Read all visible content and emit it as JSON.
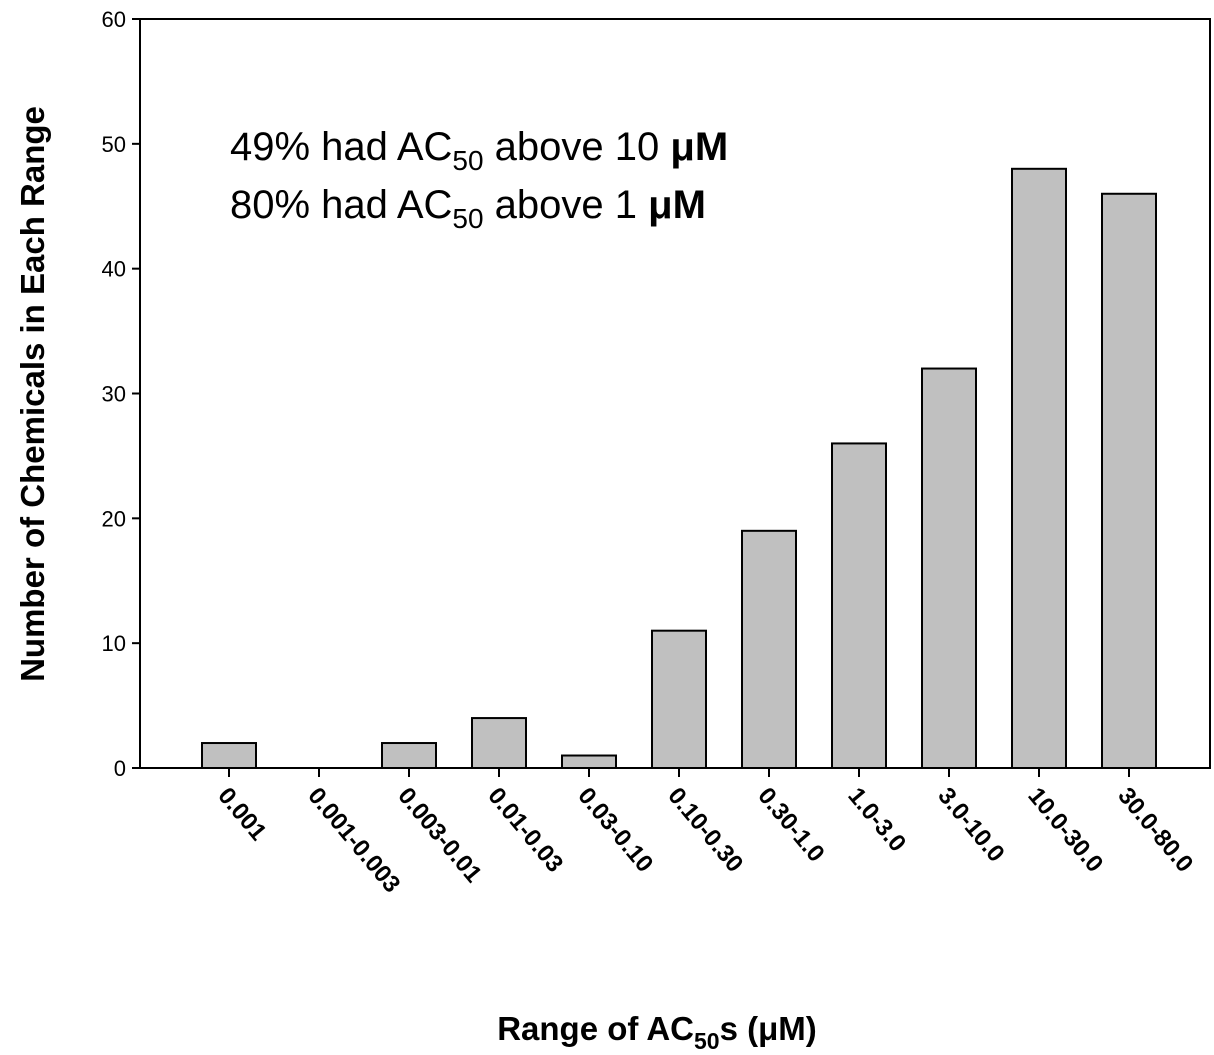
{
  "chart_data": {
    "type": "bar",
    "categories": [
      "0.001",
      "0.001-0.003",
      "0.003-0.01",
      "0.01-0.03",
      "0.03-0.10",
      "0.10-0.30",
      "0.30-1.0",
      "1.0-3.0",
      "3.0-10.0",
      "10.0-30.0",
      "30.0-80.0"
    ],
    "values": [
      2,
      0,
      2,
      4,
      1,
      11,
      19,
      26,
      32,
      48,
      46
    ],
    "ylim": [
      0,
      60
    ],
    "yticks": [
      0,
      10,
      20,
      30,
      40,
      50,
      60
    ],
    "ylabel": "Number of Chemicals in Each Range",
    "xlabel": {
      "pre": "Range of AC",
      "sub": "50",
      "post": "s (μM)"
    },
    "annotations": [
      {
        "pre": "49% had AC",
        "sub": "50",
        "post": " above 10 ",
        "unit": "μM"
      },
      {
        "pre": "80% had AC",
        "sub": "50",
        "post": " above 1 ",
        "unit": "μM"
      }
    ],
    "grid": false,
    "bar_color": "#c0c0c0",
    "bar_edge_color": "#000000"
  }
}
